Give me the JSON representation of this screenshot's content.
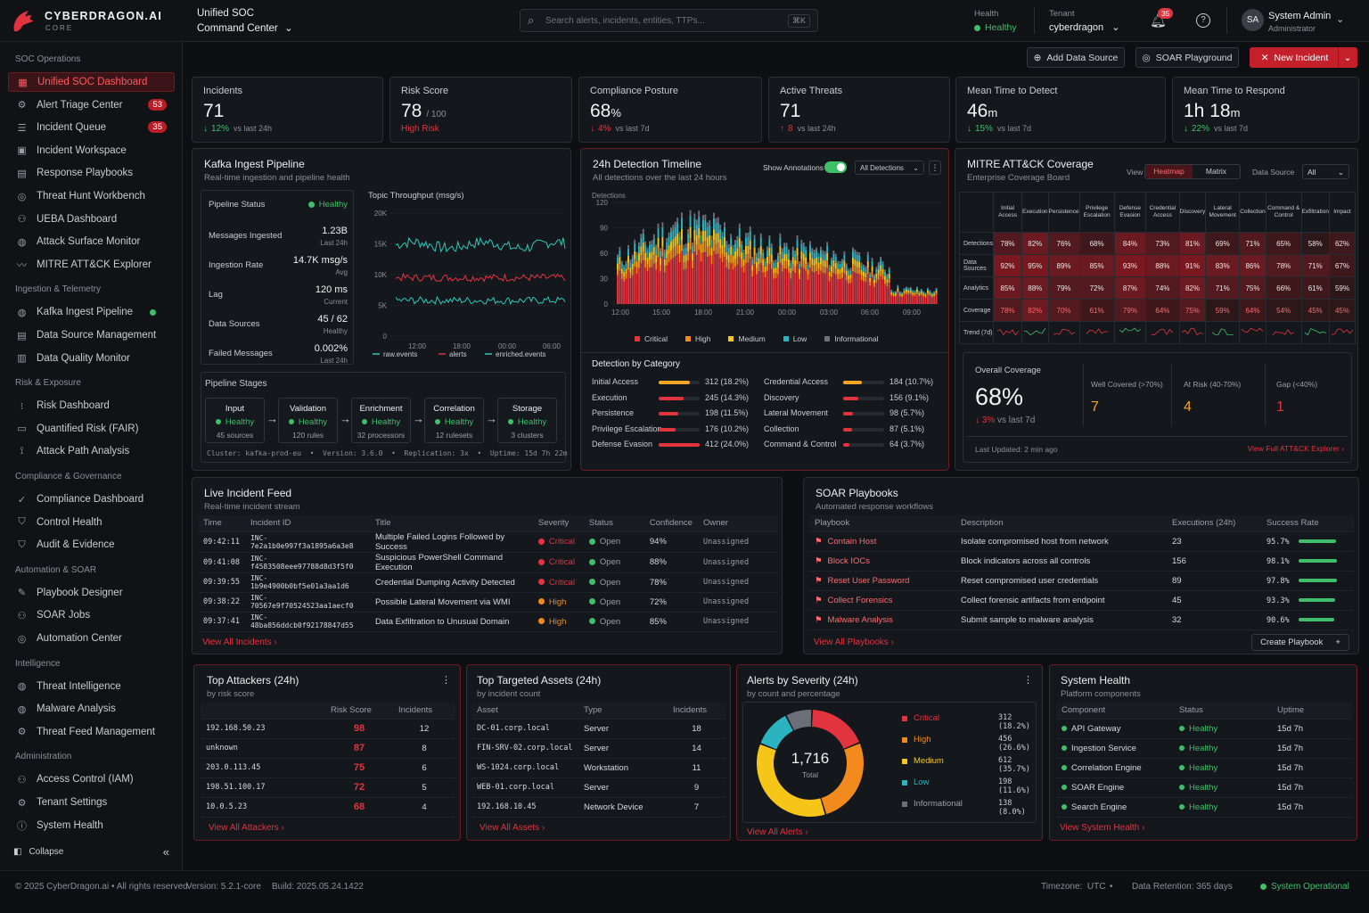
{
  "brand": {
    "name": "CYBERDRAGON.AI",
    "sub": "CORE"
  },
  "topbar": {
    "title1": "Unified SOC",
    "title2": "Command Center",
    "search_placeholder": "Search alerts, incidents, entities, TTPs...",
    "search_kbd": "⌘K",
    "health_label": "Health",
    "health_value": "Healthy",
    "tenant_label": "Tenant",
    "tenant_value": "cyberdragon",
    "notif_count": "35",
    "user_initials": "SA",
    "user_name": "System Admin",
    "user_role": "Administrator"
  },
  "sidebar": {
    "sections": [
      {
        "title": "SOC Operations",
        "items": [
          {
            "label": "Unified SOC Dashboard",
            "icon": "grid-icon",
            "active": true
          },
          {
            "label": "Alert Triage Center",
            "icon": "gears-icon",
            "badge": "53"
          },
          {
            "label": "Incident Queue",
            "icon": "list-icon",
            "badge": "35"
          },
          {
            "label": "Incident Workspace",
            "icon": "workspace-icon"
          },
          {
            "label": "Response Playbooks",
            "icon": "book-icon"
          },
          {
            "label": "Threat Hunt Workbench",
            "icon": "target-icon"
          },
          {
            "label": "UEBA Dashboard",
            "icon": "users-icon"
          },
          {
            "label": "Attack Surface Monitor",
            "icon": "globe-icon"
          },
          {
            "label": "MITRE ATT&CK Explorer",
            "icon": "trend-icon"
          }
        ]
      },
      {
        "title": "Ingestion & Telemetry",
        "items": [
          {
            "label": "Kafka Ingest Pipeline",
            "icon": "globe-icon",
            "status": "#3fbf6a"
          },
          {
            "label": "Data Source Management",
            "icon": "database-icon"
          },
          {
            "label": "Data Quality Monitor",
            "icon": "bars-icon"
          }
        ]
      },
      {
        "title": "Risk & Exposure",
        "items": [
          {
            "label": "Risk Dashboard",
            "icon": "dots-grid-icon"
          },
          {
            "label": "Quantified Risk (FAIR)",
            "icon": "document-icon"
          },
          {
            "label": "Attack Path Analysis",
            "icon": "path-icon"
          }
        ]
      },
      {
        "title": "Compliance & Governance",
        "items": [
          {
            "label": "Compliance Dashboard",
            "icon": "check-circle-icon"
          },
          {
            "label": "Control Health",
            "icon": "shield-icon"
          },
          {
            "label": "Audit & Evidence",
            "icon": "shield-check-icon"
          }
        ]
      },
      {
        "title": "Automation & SOAR",
        "items": [
          {
            "label": "Playbook Designer",
            "icon": "designer-icon"
          },
          {
            "label": "SOAR Jobs",
            "icon": "users-icon"
          },
          {
            "label": "Automation Center",
            "icon": "target-icon"
          }
        ]
      },
      {
        "title": "Intelligence",
        "items": [
          {
            "label": "Threat Intelligence",
            "icon": "globe-icon"
          },
          {
            "label": "Malware Analysis",
            "icon": "globe-icon"
          },
          {
            "label": "Threat Feed Management",
            "icon": "settings-icon"
          }
        ]
      },
      {
        "title": "Administration",
        "items": [
          {
            "label": "Access Control (IAM)",
            "icon": "user-icon"
          },
          {
            "label": "Tenant Settings",
            "icon": "gear-icon"
          },
          {
            "label": "System Health",
            "icon": "info-icon"
          }
        ]
      }
    ],
    "collapse": "Collapse"
  },
  "actions": {
    "add_source": "Add Data Source",
    "soar_playground": "SOAR Playground",
    "new_incident": "New Incident"
  },
  "kpis": [
    {
      "label": "Incidents",
      "value": "71",
      "unit": "",
      "suffix": "",
      "delta": "12%",
      "delta_note": "vs last 24h",
      "dir": "down",
      "color": "#3fbf6a"
    },
    {
      "label": "Risk Score",
      "value": "78",
      "unit": "",
      "suffix": "/ 100",
      "delta": "High Risk",
      "delta_note": "",
      "dir": "none",
      "color": "#e2343f"
    },
    {
      "label": "Compliance Posture",
      "value": "68",
      "unit": "%",
      "suffix": "",
      "delta": "4%",
      "delta_note": "vs last 7d",
      "dir": "down",
      "color": "#e2343f"
    },
    {
      "label": "Active Threats",
      "value": "71",
      "unit": "",
      "suffix": "",
      "delta": "8",
      "delta_note": "vs last 24h",
      "dir": "up",
      "color": "#e2343f"
    },
    {
      "label": "Mean Time to Detect",
      "value": "46",
      "unit": "m",
      "suffix": "",
      "delta": "15%",
      "delta_note": "vs last 7d",
      "dir": "down",
      "color": "#3fbf6a"
    },
    {
      "label": "Mean Time to Respond",
      "value": "1h 18",
      "unit": "m",
      "suffix": "",
      "delta": "22%",
      "delta_note": "vs last 7d",
      "dir": "down",
      "color": "#3fbf6a"
    }
  ],
  "kafka": {
    "title": "Kafka Ingest Pipeline",
    "sub": "Real-time ingestion and pipeline health",
    "stats": [
      {
        "label": "Pipeline Status",
        "value": "Healthy",
        "note": ""
      },
      {
        "label": "Messages Ingested",
        "value": "1.23B",
        "note": "Last 24h"
      },
      {
        "label": "Ingestion Rate",
        "value": "14.7K msg/s",
        "note": "Avg"
      },
      {
        "label": "Lag",
        "value": "120 ms",
        "note": "Current"
      },
      {
        "label": "Data Sources",
        "value": "45 / 62",
        "note": "Healthy"
      },
      {
        "label": "Failed Messages",
        "value": "0.002%",
        "note": "Last 24h"
      }
    ],
    "chart_title": "Topic Throughput (msg/s)",
    "stages_title": "Pipeline Stages",
    "stages": [
      {
        "name": "Input",
        "status": "Healthy",
        "note": "45 sources"
      },
      {
        "name": "Validation",
        "status": "Healthy",
        "note": "120 rules"
      },
      {
        "name": "Enrichment",
        "status": "Healthy",
        "note": "32 processors"
      },
      {
        "name": "Correlation",
        "status": "Healthy",
        "note": "12 rulesets"
      },
      {
        "name": "Storage",
        "status": "Healthy",
        "note": "3 clusters"
      }
    ],
    "cluster_line": "Cluster: kafka-prod-eu  •  Version: 3.6.0  •  Replication: 3x  •  Uptime: 15d 7h 22m"
  },
  "timeline": {
    "title": "24h Detection Timeline",
    "sub": "All detections over the last 24 hours",
    "annot_label": "Show Annotations",
    "filter": "All Detections",
    "ylabel": "Detections",
    "cat_title": "Detection by Category",
    "categories_left": [
      {
        "name": "Initial Access",
        "value": "312 (18.2%)",
        "pct": 0.75,
        "color": "#f5a524"
      },
      {
        "name": "Execution",
        "value": "245 (14.3%)",
        "pct": 0.6,
        "color": "#e2343f"
      },
      {
        "name": "Persistence",
        "value": "198 (11.5%)",
        "pct": 0.48,
        "color": "#e2343f"
      },
      {
        "name": "Privilege Escalation",
        "value": "176 (10.2%)",
        "pct": 0.42,
        "color": "#e2343f"
      },
      {
        "name": "Defense Evasion",
        "value": "412 (24.0%)",
        "pct": 1.0,
        "color": "#e2343f"
      }
    ],
    "categories_right": [
      {
        "name": "Credential Access",
        "value": "184 (10.7%)",
        "pct": 0.45,
        "color": "#f5a524"
      },
      {
        "name": "Discovery",
        "value": "156 (9.1%)",
        "pct": 0.38,
        "color": "#e2343f"
      },
      {
        "name": "Lateral Movement",
        "value": "98 (5.7%)",
        "pct": 0.24,
        "color": "#e2343f"
      },
      {
        "name": "Collection",
        "value": "87 (5.1%)",
        "pct": 0.21,
        "color": "#e2343f"
      },
      {
        "name": "Command & Control",
        "value": "64 (3.7%)",
        "pct": 0.16,
        "color": "#e2343f"
      }
    ]
  },
  "mitre": {
    "title": "MITRE ATT&CK Coverage",
    "sub": "Enterprise Coverage Board",
    "view_label": "View",
    "view_active": "Heatmap",
    "view_other": "Matrix",
    "ds_label": "Data Source",
    "ds_value": "All",
    "columns": [
      "Initial Access",
      "Execution",
      "Persistence",
      "Privilege Escalation",
      "Defense Evasion",
      "Credential Access",
      "Discovery",
      "Lateral Movement",
      "Collection",
      "Command & Control",
      "Exfiltration",
      "Impact"
    ],
    "rows": [
      {
        "name": "Detections",
        "values": [
          "78%",
          "82%",
          "76%",
          "68%",
          "84%",
          "73%",
          "81%",
          "69%",
          "71%",
          "65%",
          "58%",
          "62%"
        ]
      },
      {
        "name": "Data Sources",
        "values": [
          "92%",
          "95%",
          "89%",
          "85%",
          "93%",
          "88%",
          "91%",
          "83%",
          "86%",
          "78%",
          "71%",
          "67%"
        ]
      },
      {
        "name": "Analytics",
        "values": [
          "85%",
          "88%",
          "79%",
          "72%",
          "87%",
          "74%",
          "82%",
          "71%",
          "75%",
          "66%",
          "61%",
          "59%"
        ]
      },
      {
        "name": "Coverage",
        "values": [
          "78%",
          "82%",
          "70%",
          "61%",
          "79%",
          "64%",
          "75%",
          "59%",
          "64%",
          "54%",
          "45%",
          "45%"
        ]
      }
    ],
    "trend_label": "Trend (7d)",
    "overall_label": "Overall Coverage",
    "overall_value": "68%",
    "overall_delta": "3%",
    "overall_delta_note": "vs last 7d",
    "well_label": "Well Covered (>70%)",
    "well_value": "7",
    "risk_label": "At Risk (40-70%)",
    "risk_value": "4",
    "gap_label": "Gap (<40%)",
    "gap_value": "1",
    "updated": "Last Updated: 2 min ago",
    "link": "View Full ATT&CK Explorer"
  },
  "incidents": {
    "title": "Live Incident Feed",
    "sub": "Real-time incident stream",
    "headers": [
      "Time",
      "Incident ID",
      "Title",
      "Severity",
      "Status",
      "Confidence",
      "Owner"
    ],
    "rows": [
      {
        "time": "09:42:11",
        "id": "INC-7e2a1b0e997f3a1895a6a3e8",
        "title": "Multiple Failed Logins Followed by Success",
        "sev": "Critical",
        "status": "Open",
        "conf": "94%",
        "owner": "Unassigned"
      },
      {
        "time": "09:41:08",
        "id": "INC-f4583508eee97788d8d3f5f0",
        "title": "Suspicious PowerShell Command Execution",
        "sev": "Critical",
        "status": "Open",
        "conf": "88%",
        "owner": "Unassigned"
      },
      {
        "time": "09:39:55",
        "id": "INC-1b9e4900b0bf5e01a3aa1d6",
        "title": "Credential Dumping Activity Detected",
        "sev": "Critical",
        "status": "Open",
        "conf": "78%",
        "owner": "Unassigned"
      },
      {
        "time": "09:38:22",
        "id": "INC-70567e9f70524523aa1aecf0",
        "title": "Possible Lateral Movement via WMI",
        "sev": "High",
        "status": "Open",
        "conf": "72%",
        "owner": "Unassigned"
      },
      {
        "time": "09:37:41",
        "id": "INC-48ba856ddcb0f92178847d55",
        "title": "Data Exfiltration to Unusual Domain",
        "sev": "High",
        "status": "Open",
        "conf": "85%",
        "owner": "Unassigned"
      }
    ],
    "link": "View All Incidents"
  },
  "soar": {
    "title": "SOAR Playbooks",
    "sub": "Automated response workflows",
    "headers": [
      "Playbook",
      "Description",
      "Executions (24h)",
      "Success Rate"
    ],
    "rows": [
      {
        "name": "Contain Host",
        "desc": "Isolate compromised host from network",
        "exec": "23",
        "rate": "95.7%",
        "pct": 0.957
      },
      {
        "name": "Block IOCs",
        "desc": "Block indicators across all controls",
        "exec": "156",
        "rate": "98.1%",
        "pct": 0.981
      },
      {
        "name": "Reset User Password",
        "desc": "Reset compromised user credentials",
        "exec": "89",
        "rate": "97.8%",
        "pct": 0.978
      },
      {
        "name": "Collect Forensics",
        "desc": "Collect forensic artifacts from endpoint",
        "exec": "45",
        "rate": "93.3%",
        "pct": 0.933
      },
      {
        "name": "Malware Analysis",
        "desc": "Submit sample to malware analysis",
        "exec": "32",
        "rate": "90.6%",
        "pct": 0.906
      }
    ],
    "link": "View All Playbooks",
    "create": "Create Playbook"
  },
  "attackers": {
    "title": "Top Attackers (24h)",
    "sub": "by risk score",
    "headers": [
      "",
      "Risk Score",
      "Incidents"
    ],
    "rows": [
      {
        "ip": "192.168.50.23",
        "score": "98",
        "inc": "12"
      },
      {
        "ip": "unknown",
        "score": "87",
        "inc": "8"
      },
      {
        "ip": "203.0.113.45",
        "score": "75",
        "inc": "6"
      },
      {
        "ip": "198.51.100.17",
        "score": "72",
        "inc": "5"
      },
      {
        "ip": "10.0.5.23",
        "score": "68",
        "inc": "4"
      }
    ],
    "link": "View All Attackers"
  },
  "assets": {
    "title": "Top Targeted Assets (24h)",
    "sub": "by incident count",
    "headers": [
      "Asset",
      "Type",
      "Incidents"
    ],
    "rows": [
      {
        "asset": "DC-01.corp.local",
        "type": "Server",
        "inc": "18"
      },
      {
        "asset": "FIN-SRV-02.corp.local",
        "type": "Server",
        "inc": "14"
      },
      {
        "asset": "WS-1024.corp.local",
        "type": "Workstation",
        "inc": "11"
      },
      {
        "asset": "WEB-01.corp.local",
        "type": "Server",
        "inc": "9"
      },
      {
        "asset": "192.168.10.45",
        "type": "Network Device",
        "inc": "7"
      }
    ],
    "link": "View All Assets"
  },
  "severity": {
    "title": "Alerts by Severity (24h)",
    "sub": "by count and percentage",
    "total": "1,716",
    "total_label": "Total",
    "link": "View All Alerts"
  },
  "health": {
    "title": "System Health",
    "sub": "Platform components",
    "headers": [
      "Component",
      "Status",
      "Uptime"
    ],
    "rows": [
      {
        "c": "API Gateway",
        "s": "Healthy",
        "u": "15d 7h"
      },
      {
        "c": "Ingestion Service",
        "s": "Healthy",
        "u": "15d 7h"
      },
      {
        "c": "Correlation Engine",
        "s": "Healthy",
        "u": "15d 7h"
      },
      {
        "c": "SOAR Engine",
        "s": "Healthy",
        "u": "15d 7h"
      },
      {
        "c": "Search Engine",
        "s": "Healthy",
        "u": "15d 7h"
      }
    ],
    "link": "View System Health"
  },
  "footer": {
    "copyright": "© 2025 CyberDragon.ai  •  All rights reserved",
    "version": "Version: 5.2.1-core",
    "build": "Build: 2025.05.24.1422",
    "timezone": "Timezone:  UTC",
    "retention": "Data Retention: 365 days",
    "status": "System Operational"
  },
  "chart_data": [
    {
      "type": "line",
      "ylabel": "",
      "x": [
        "12:00",
        "18:00",
        "00:00",
        "06:00"
      ],
      "ylim": [
        0,
        20000
      ],
      "yticks": [
        "0",
        "5K",
        "10K",
        "15K",
        "20K"
      ],
      "series": [
        {
          "name": "raw.events",
          "color": "#2fc6b8",
          "level": 14800
        },
        {
          "name": "alerts",
          "color": "#e2343f",
          "level": 9500
        },
        {
          "name": "enriched.events",
          "color": "#2fc6b8",
          "level": 5800
        }
      ]
    },
    {
      "type": "bar",
      "stacked": true,
      "ylabel": "Detections",
      "x": [
        "12:00",
        "15:00",
        "18:00",
        "21:00",
        "00:00",
        "03:00",
        "06:00",
        "09:00"
      ],
      "ylim": [
        0,
        120
      ],
      "yticks": [
        "0",
        "30",
        "60",
        "90",
        "120"
      ],
      "series": [
        {
          "name": "Critical",
          "color": "#e2343f"
        },
        {
          "name": "High",
          "color": "#f28a1e"
        },
        {
          "name": "Medium",
          "color": "#f5c518"
        },
        {
          "name": "Low",
          "color": "#2bb3c0"
        },
        {
          "name": "Informational",
          "color": "#6b6f78"
        }
      ]
    },
    {
      "type": "pie",
      "title": "Alerts by Severity (24h)",
      "slices": [
        {
          "name": "Critical",
          "value": 312,
          "label": "312 (18.2%)",
          "color": "#e2343f"
        },
        {
          "name": "High",
          "value": 456,
          "label": "456 (26.6%)",
          "color": "#f28a1e"
        },
        {
          "name": "Medium",
          "value": 612,
          "label": "612 (35.7%)",
          "color": "#f5c518"
        },
        {
          "name": "Low",
          "value": 198,
          "label": "198 (11.6%)",
          "color": "#2bb3c0"
        },
        {
          "name": "Informational",
          "value": 138,
          "label": "138 (8.0%)",
          "color": "#6b6f78"
        }
      ]
    }
  ]
}
